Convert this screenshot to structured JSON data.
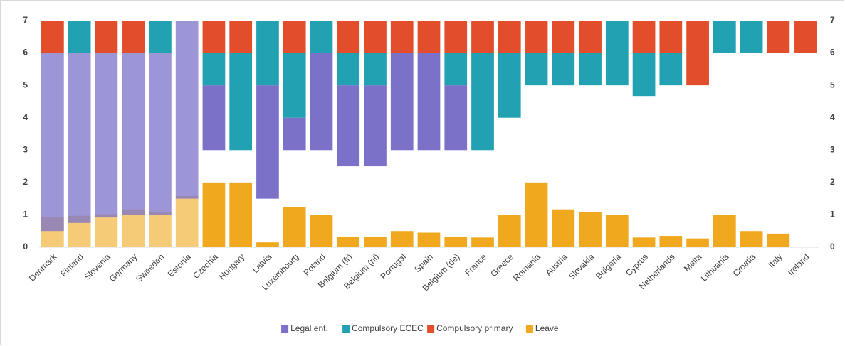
{
  "chart_data": {
    "type": "range-bar",
    "categories": [
      "Denmark",
      "Finland",
      "Slovenia",
      "Germany",
      "Sweeden",
      "Estonia",
      "Czechia",
      "Hungary",
      "Latvia",
      "Luxembourg",
      "Poland",
      "Belgium (fr)",
      "Belgium (nl)",
      "Portugal",
      "Spain",
      "Belgium (de)",
      "France",
      "Greece",
      "Romania",
      "Austria",
      "Slovakia",
      "Bulgaria",
      "Cyprus",
      "Netherlands",
      "Malta",
      "Lithuania",
      "Croatia",
      "Italy",
      "Ireland"
    ],
    "series": [
      {
        "name": "Legal ent.",
        "color": "#7b71c8",
        "low": [
          0.5,
          0.75,
          0.92,
          1,
          1,
          1.5,
          3,
          null,
          1.5,
          3,
          3,
          2.5,
          2.5,
          3,
          3,
          3,
          null,
          null,
          null,
          null,
          null,
          null,
          null,
          null,
          null,
          null,
          null,
          null,
          null
        ],
        "high": [
          6,
          6,
          6,
          6,
          6,
          7,
          5,
          null,
          5,
          4,
          6,
          5,
          5,
          6,
          6,
          5,
          null,
          null,
          null,
          null,
          null,
          null,
          null,
          null,
          null,
          null,
          null,
          null,
          null
        ]
      },
      {
        "name": "Compulsory ECEC",
        "color": "#21a1b1",
        "low": [
          null,
          6,
          null,
          null,
          6,
          null,
          5,
          3,
          5,
          4,
          6,
          5,
          5,
          null,
          null,
          5,
          3,
          4,
          5,
          5,
          5,
          5,
          4.67,
          5,
          null,
          6,
          6,
          null,
          null
        ],
        "high": [
          null,
          7,
          null,
          null,
          7,
          null,
          6,
          6,
          7,
          6,
          7,
          6,
          6,
          null,
          null,
          6,
          6,
          6,
          6,
          6,
          6,
          7,
          6,
          6,
          null,
          7,
          7,
          null,
          null
        ]
      },
      {
        "name": "Compulsory primary",
        "color": "#e24d2b",
        "low": [
          6,
          null,
          6,
          6,
          null,
          null,
          6,
          6,
          null,
          6,
          null,
          6,
          6,
          6,
          6,
          6,
          6,
          6,
          6,
          6,
          6,
          null,
          6,
          6,
          5,
          null,
          null,
          6,
          6
        ],
        "high": [
          7,
          null,
          7,
          7,
          null,
          null,
          7,
          7,
          null,
          7,
          null,
          7,
          7,
          7,
          7,
          7,
          7,
          7,
          7,
          7,
          7,
          null,
          7,
          7,
          7,
          null,
          null,
          7,
          7
        ]
      },
      {
        "name": "Leave",
        "color": "#f0a91e",
        "low": [
          0,
          0,
          0,
          0,
          0,
          0,
          0,
          0,
          0,
          0,
          0,
          0,
          0,
          0,
          0,
          0,
          0,
          0,
          0,
          0,
          0,
          0,
          0,
          0,
          0,
          0,
          0,
          0,
          null
        ],
        "high": [
          0.92,
          0.97,
          1.02,
          1.17,
          1.08,
          1.58,
          2,
          2,
          0.15,
          1.23,
          1,
          0.33,
          0.33,
          0.5,
          0.45,
          0.33,
          0.3,
          1,
          2,
          1.17,
          1.08,
          1,
          0.3,
          0.35,
          0.27,
          1,
          0.5,
          0.42,
          null
        ]
      }
    ],
    "ylim": [
      0,
      7
    ],
    "yticks": [
      0,
      1,
      2,
      3,
      4,
      5,
      6,
      7
    ],
    "y2lim": [
      0,
      7
    ],
    "y2ticks": [
      0,
      1,
      2,
      3,
      4,
      5,
      6,
      7
    ],
    "grid": false,
    "legend": "bottom"
  }
}
